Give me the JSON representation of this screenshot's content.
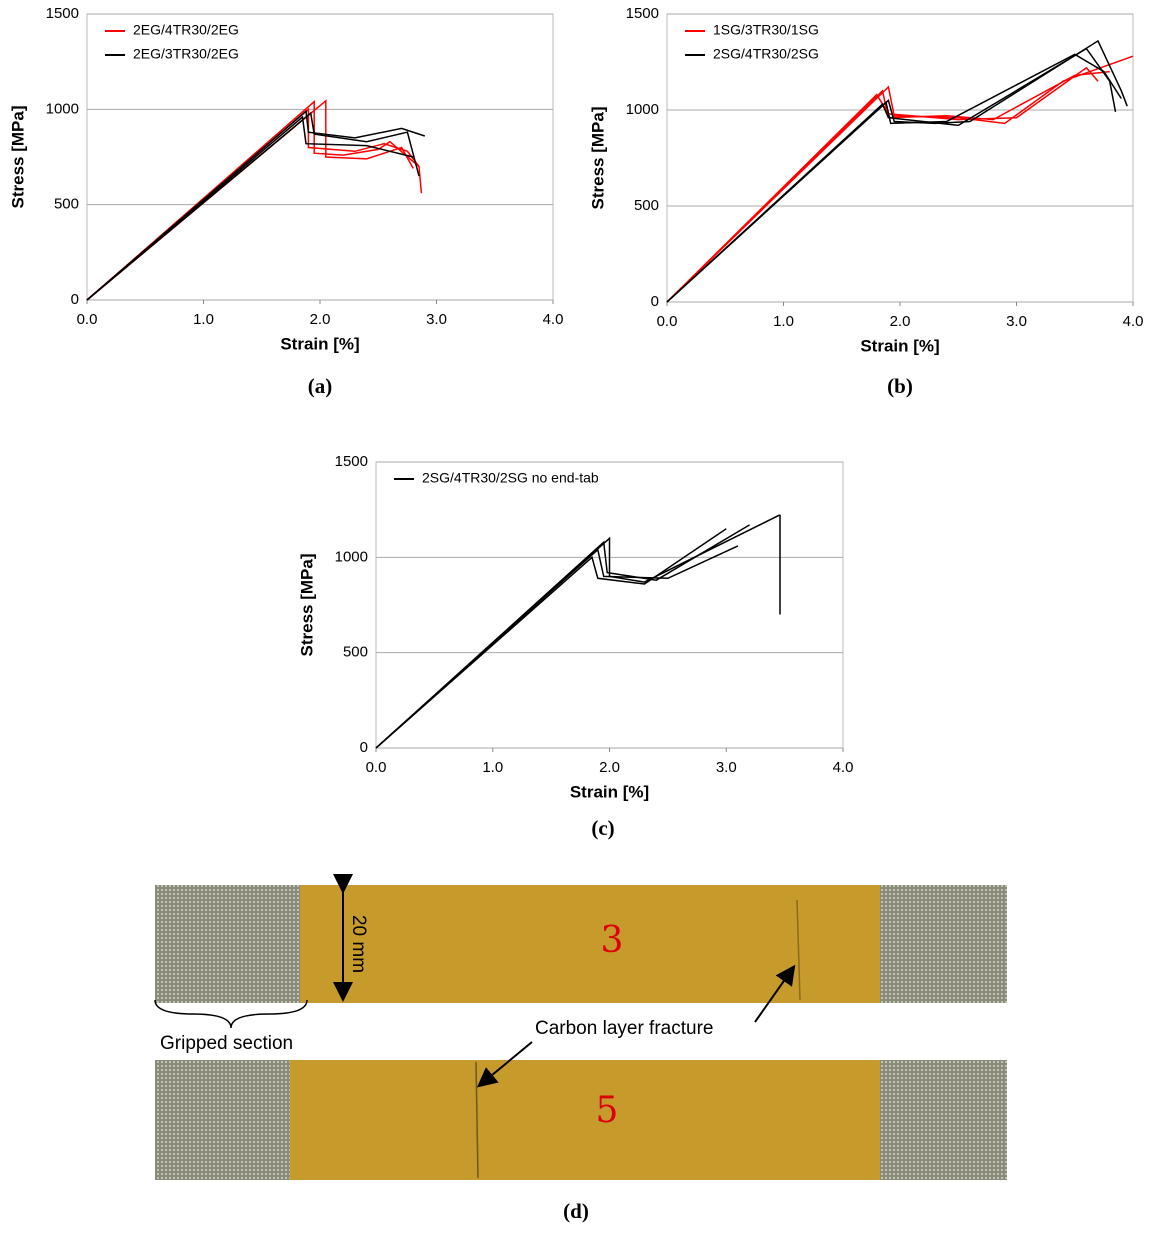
{
  "chart_data": [
    {
      "type": "line",
      "label": "(a)",
      "xlabel": "Strain [%]",
      "ylabel": "Stress [MPa]",
      "xlim": [
        0,
        4
      ],
      "ylim": [
        0,
        1500
      ],
      "xticks": [
        {
          "value": 0,
          "label": "0.0"
        },
        {
          "value": 1,
          "label": "1.0"
        },
        {
          "value": 2,
          "label": "2.0"
        },
        {
          "value": 3,
          "label": "3.0"
        },
        {
          "value": 4,
          "label": "4.0"
        }
      ],
      "yticks": [
        0,
        500,
        1000,
        1500
      ],
      "grid": true,
      "legend": "upper-left",
      "series": [
        {
          "name": "2EG/4TR30/2EG",
          "color": "#ff0000",
          "curves": [
            {
              "x": [
                0,
                1.95,
                1.95,
                2.2,
                2.5,
                2.6,
                2.85,
                2.87
              ],
              "values": [
                0,
                1040,
                770,
                760,
                790,
                830,
                700,
                560
              ]
            },
            {
              "x": [
                0,
                2.05,
                2.05,
                2.4,
                2.6,
                2.7,
                2.8
              ],
              "values": [
                0,
                1045,
                750,
                740,
                780,
                800,
                690
              ]
            },
            {
              "x": [
                0,
                1.9,
                1.9,
                2.3,
                2.55,
                2.75,
                2.85
              ],
              "values": [
                0,
                1000,
                800,
                780,
                820,
                780,
                700
              ]
            }
          ]
        },
        {
          "name": "2EG/3TR30/2EG",
          "color": "#000000",
          "curves": [
            {
              "x": [
                0,
                1.88,
                1.9,
                2.3,
                2.7,
                2.9
              ],
              "values": [
                0,
                990,
                880,
                850,
                900,
                860
              ]
            },
            {
              "x": [
                0,
                1.92,
                1.95,
                2.4,
                2.75,
                2.85
              ],
              "values": [
                0,
                980,
                870,
                830,
                880,
                650
              ]
            },
            {
              "x": [
                0,
                1.85,
                1.88,
                2.4,
                2.8
              ],
              "values": [
                0,
                960,
                820,
                810,
                750
              ]
            }
          ]
        }
      ]
    },
    {
      "type": "line",
      "label": "(b)",
      "xlabel": "Strain [%]",
      "ylabel": "Stress [MPa]",
      "xlim": [
        0,
        4
      ],
      "ylim": [
        0,
        1500
      ],
      "xticks": [
        {
          "value": 0,
          "label": "0.0"
        },
        {
          "value": 1,
          "label": "1.0"
        },
        {
          "value": 2,
          "label": "2.0"
        },
        {
          "value": 3,
          "label": "3.0"
        },
        {
          "value": 4,
          "label": "4.0"
        }
      ],
      "yticks": [
        0,
        500,
        1000,
        1500
      ],
      "grid": true,
      "legend": "upper-left",
      "series": [
        {
          "name": "1SG/3TR30/1SG",
          "color": "#ff0000",
          "curves": [
            {
              "x": [
                0,
                1.9,
                1.95,
                2.5,
                2.9,
                3.4,
                4.0
              ],
              "values": [
                0,
                1120,
                970,
                960,
                930,
                1150,
                1280
              ]
            },
            {
              "x": [
                0,
                1.85,
                1.9,
                2.4,
                2.8,
                3.5,
                3.8
              ],
              "values": [
                0,
                1100,
                960,
                970,
                950,
                1180,
                1200
              ]
            },
            {
              "x": [
                0,
                1.8,
                1.9,
                2.5,
                3.0,
                3.6,
                3.7
              ],
              "values": [
                0,
                1080,
                980,
                950,
                960,
                1220,
                1150
              ]
            }
          ]
        },
        {
          "name": "2SG/4TR30/2SG",
          "color": "#000000",
          "curves": [
            {
              "x": [
                0,
                1.9,
                1.95,
                2.3,
                2.6,
                3.7,
                3.9,
                3.95
              ],
              "values": [
                0,
                1050,
                940,
                930,
                940,
                1360,
                1100,
                1020
              ]
            },
            {
              "x": [
                0,
                1.85,
                1.9,
                2.5,
                3.6,
                3.8,
                3.85
              ],
              "values": [
                0,
                1030,
                960,
                920,
                1320,
                1150,
                990
              ]
            },
            {
              "x": [
                0,
                1.88,
                1.92,
                2.4,
                3.5,
                3.75,
                3.9
              ],
              "values": [
                0,
                1040,
                930,
                940,
                1290,
                1200,
                1060
              ]
            }
          ]
        }
      ]
    },
    {
      "type": "line",
      "label": "(c)",
      "xlabel": "Strain [%]",
      "ylabel": "Stress [MPa]",
      "xlim": [
        0,
        4
      ],
      "ylim": [
        0,
        1500
      ],
      "xticks": [
        {
          "value": 0,
          "label": "0.0"
        },
        {
          "value": 1,
          "label": "1.0"
        },
        {
          "value": 2,
          "label": "2.0"
        },
        {
          "value": 3,
          "label": "3.0"
        },
        {
          "value": 4,
          "label": "4.0"
        }
      ],
      "yticks": [
        0,
        500,
        1000,
        1500
      ],
      "grid": true,
      "legend": "upper-left",
      "series": [
        {
          "name": "2SG/4TR30/2SG no end-tab",
          "color": "#000000",
          "curves": [
            {
              "x": [
                0,
                2.0,
                2.0,
                2.3,
                3.45,
                3.46,
                3.46
              ],
              "values": [
                0,
                1100,
                900,
                870,
                1220,
                1220,
                700
              ]
            },
            {
              "x": [
                0,
                1.95,
                1.98,
                2.4,
                3.2
              ],
              "values": [
                0,
                1080,
                920,
                880,
                1170
              ]
            },
            {
              "x": [
                0,
                1.85,
                1.9,
                2.3,
                3.0
              ],
              "values": [
                0,
                1000,
                890,
                860,
                1150
              ]
            },
            {
              "x": [
                0,
                1.9,
                1.95,
                2.5,
                3.1
              ],
              "values": [
                0,
                1040,
                900,
                890,
                1060
              ]
            }
          ]
        }
      ]
    }
  ],
  "photo": {
    "label": "(d)",
    "width_label": "20 mm",
    "grip_label": "Gripped section",
    "fracture_label": "Carbon layer fracture",
    "specimen_marks": [
      "3",
      "5"
    ]
  }
}
